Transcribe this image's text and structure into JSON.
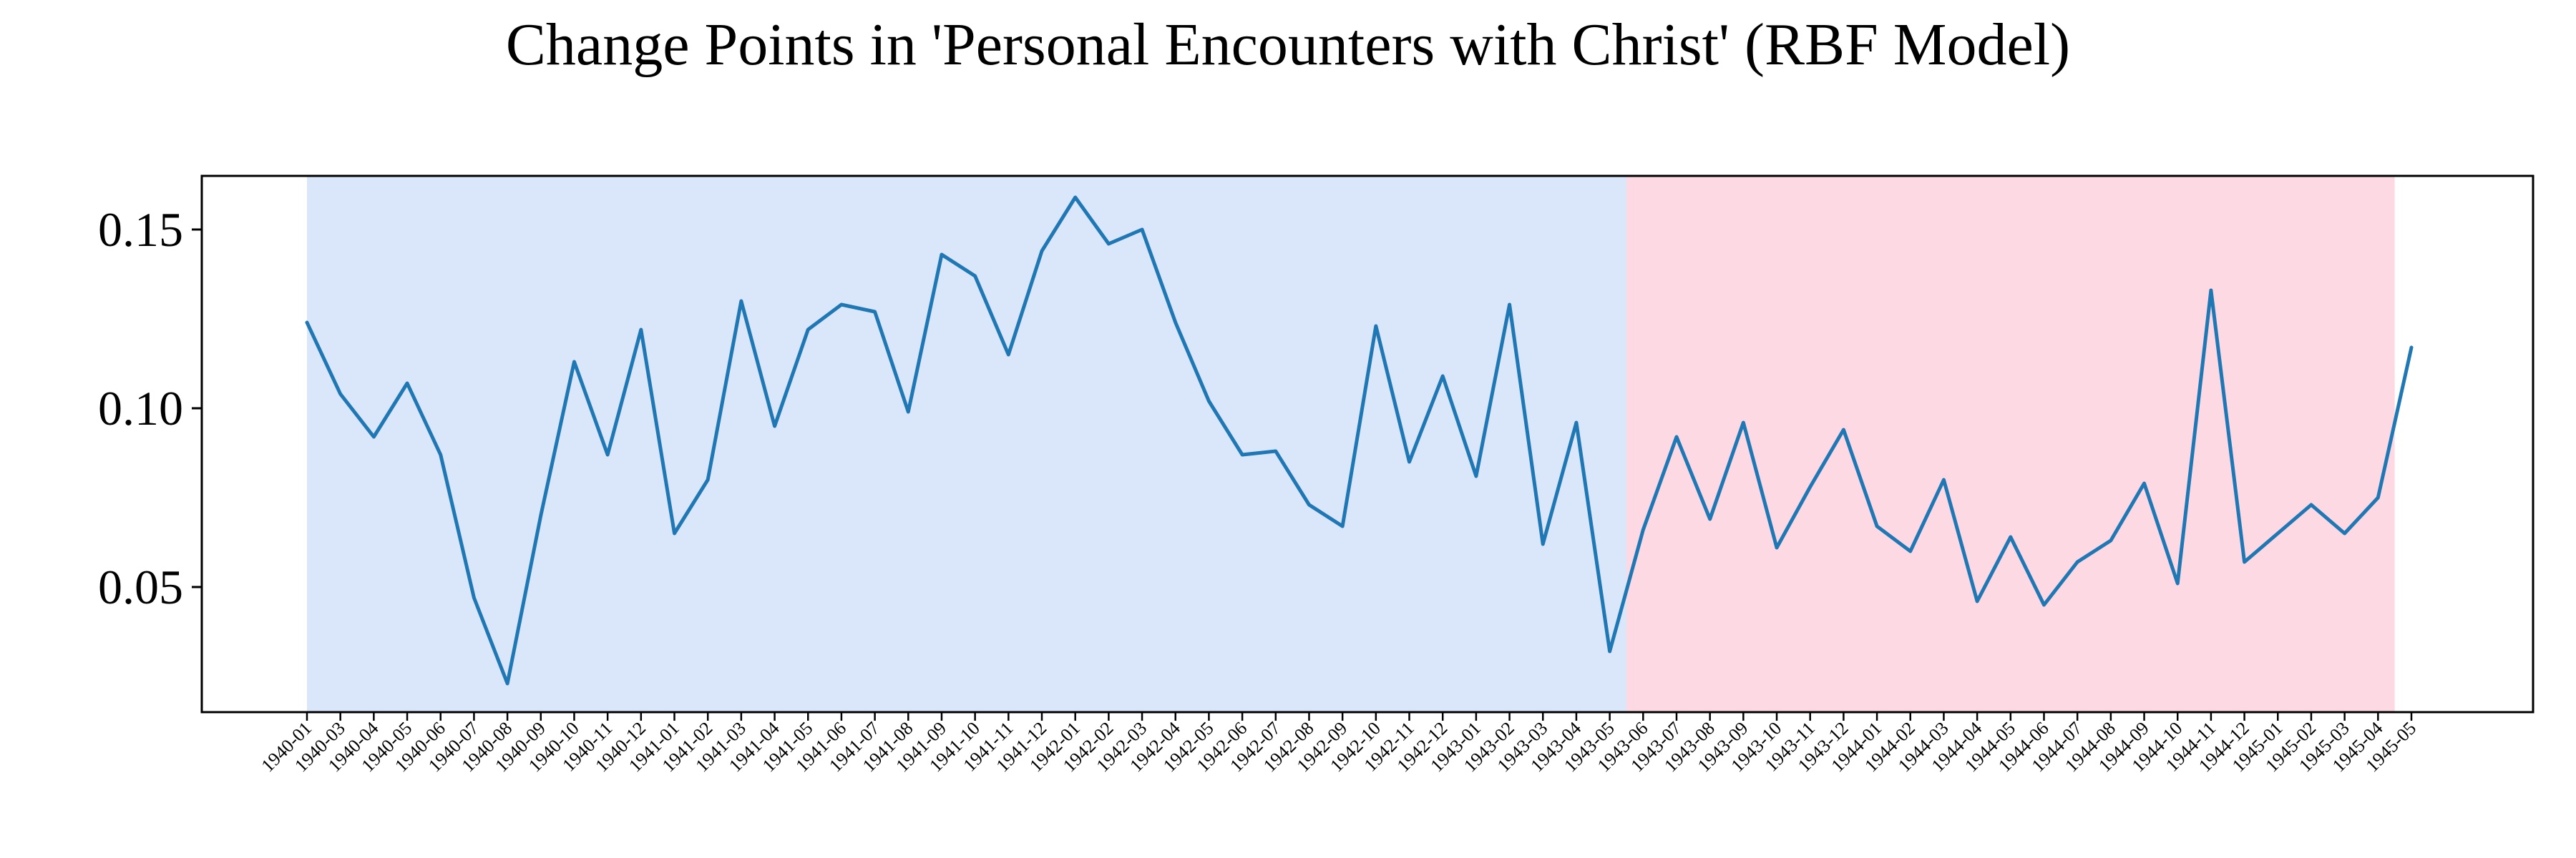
{
  "chart_data": {
    "type": "line",
    "title": "Change Points in 'Personal Encounters with Christ' (RBF Model)",
    "xlabel": "",
    "ylabel": "",
    "ylim": [
      0.015,
      0.165
    ],
    "yticks": [
      0.05,
      0.1,
      0.15
    ],
    "ytick_labels": [
      "0.05",
      "0.10",
      "0.15"
    ],
    "grid": false,
    "legend": "none",
    "line_color": "#1f77b4",
    "segments": [
      {
        "start": "1940-01",
        "end": "1943-05",
        "color": "#dae6f9"
      },
      {
        "start": "1943-05",
        "end": "1945-04",
        "color": "#fcd9e3"
      }
    ],
    "x": [
      "1940-01",
      "1940-03",
      "1940-04",
      "1940-05",
      "1940-06",
      "1940-07",
      "1940-08",
      "1940-09",
      "1940-10",
      "1940-11",
      "1940-12",
      "1941-01",
      "1941-02",
      "1941-03",
      "1941-04",
      "1941-05",
      "1941-06",
      "1941-07",
      "1941-08",
      "1941-09",
      "1941-10",
      "1941-11",
      "1941-12",
      "1942-01",
      "1942-02",
      "1942-03",
      "1942-04",
      "1942-05",
      "1942-06",
      "1942-07",
      "1942-08",
      "1942-09",
      "1942-10",
      "1942-11",
      "1942-12",
      "1943-01",
      "1943-02",
      "1943-03",
      "1943-04",
      "1943-05",
      "1943-06",
      "1943-07",
      "1943-08",
      "1943-09",
      "1943-10",
      "1943-11",
      "1943-12",
      "1944-01",
      "1944-02",
      "1944-03",
      "1944-04",
      "1944-05",
      "1944-06",
      "1944-07",
      "1944-08",
      "1944-09",
      "1944-10",
      "1944-11",
      "1944-12",
      "1945-01",
      "1945-02",
      "1945-03",
      "1945-04",
      "1945-05"
    ],
    "series": [
      {
        "values": [
          0.124,
          0.104,
          0.092,
          0.107,
          0.087,
          0.047,
          0.023,
          0.07,
          0.113,
          0.087,
          0.122,
          0.065,
          0.08,
          0.13,
          0.095,
          0.122,
          0.129,
          0.127,
          0.099,
          0.143,
          0.137,
          0.115,
          0.144,
          0.159,
          0.146,
          0.15,
          0.124,
          0.102,
          0.087,
          0.088,
          0.073,
          0.067,
          0.123,
          0.085,
          0.109,
          0.081,
          0.129,
          0.062,
          0.096,
          0.032,
          0.066,
          0.092,
          0.069,
          0.096,
          0.061,
          0.078,
          0.094,
          0.067,
          0.06,
          0.08,
          0.046,
          0.064,
          0.045,
          0.057,
          0.063,
          0.079,
          0.051,
          0.133,
          0.057,
          0.065,
          0.073,
          0.065,
          0.075,
          0.117
        ]
      }
    ]
  }
}
